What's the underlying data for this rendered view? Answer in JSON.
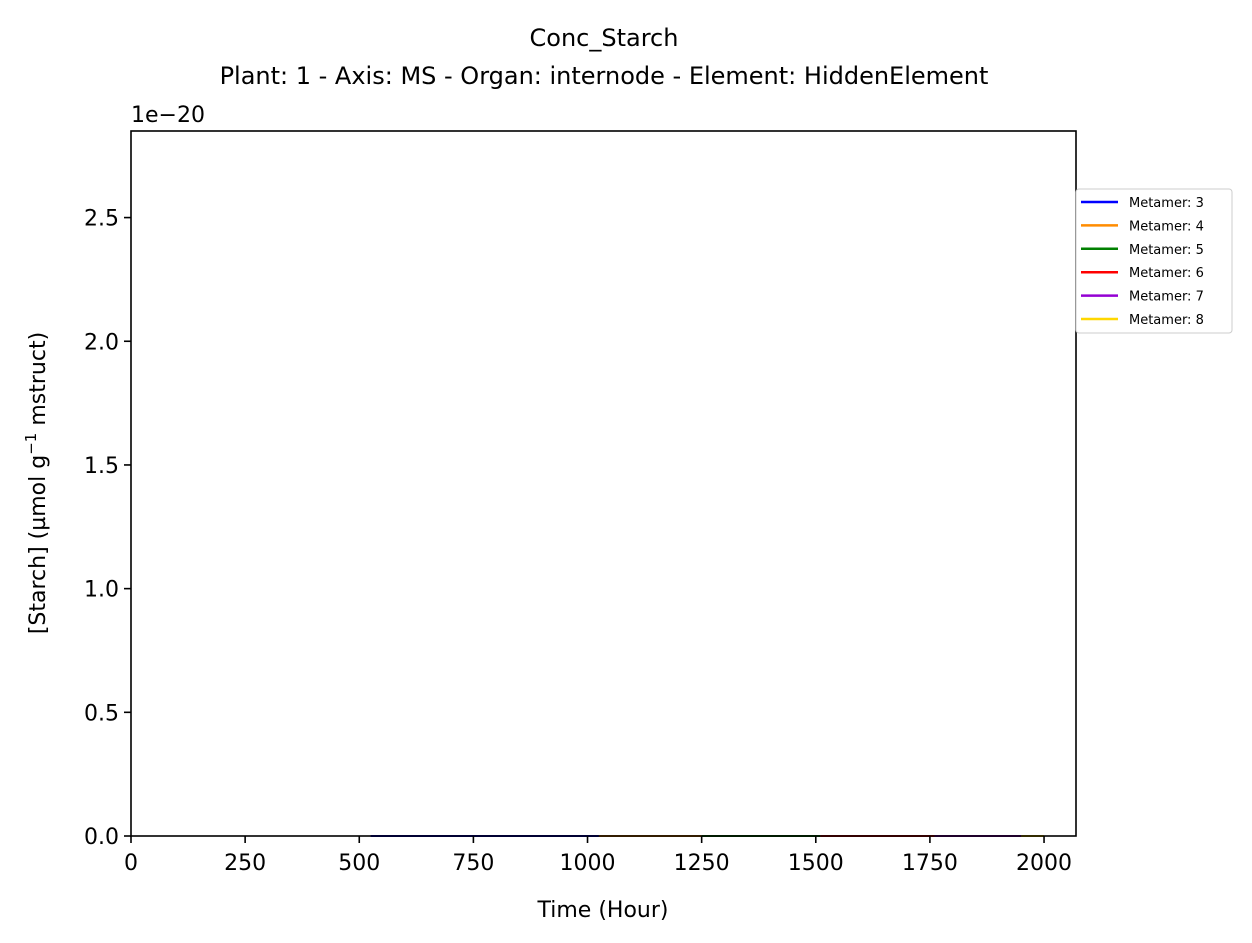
{
  "chart_data": {
    "type": "line",
    "title": "Conc_Starch",
    "subtitle": "Plant: 1 - Axis: MS - Organ: internode - Element: HiddenElement",
    "xlabel": "Time (Hour)",
    "ylabel_main": "[Starch] (µmol g",
    "ylabel_sup": "−1",
    "ylabel_tail": " mstruct)",
    "offset_text": "1e−20",
    "xlim": [
      0,
      2070
    ],
    "ylim": [
      0,
      2.85
    ],
    "x_ticks": [
      0,
      250,
      500,
      750,
      1000,
      1250,
      1500,
      1750,
      2000
    ],
    "y_ticks": [
      0.0,
      0.5,
      1.0,
      1.5,
      2.0,
      2.5
    ],
    "grid": false,
    "legend_position": "upper-right-outside",
    "series": [
      {
        "name": "Metamer: 3",
        "color": "#0000ff",
        "x": [
          525,
          1025
        ],
        "y": [
          0,
          0
        ]
      },
      {
        "name": "Metamer: 4",
        "color": "#ff8c00",
        "x": [
          1025,
          1250
        ],
        "y": [
          0,
          0
        ]
      },
      {
        "name": "Metamer: 5",
        "color": "#008000",
        "x": [
          1250,
          1510
        ],
        "y": [
          0,
          0
        ]
      },
      {
        "name": "Metamer: 6",
        "color": "#ff0000",
        "x": [
          1510,
          1760
        ],
        "y": [
          0,
          0
        ]
      },
      {
        "name": "Metamer: 7",
        "color": "#9400d3",
        "x": [
          1760,
          1950
        ],
        "y": [
          0,
          0
        ]
      },
      {
        "name": "Metamer: 8",
        "color": "#ffd700",
        "x": [
          1950,
          2000
        ],
        "y": [
          0,
          0
        ]
      }
    ]
  }
}
